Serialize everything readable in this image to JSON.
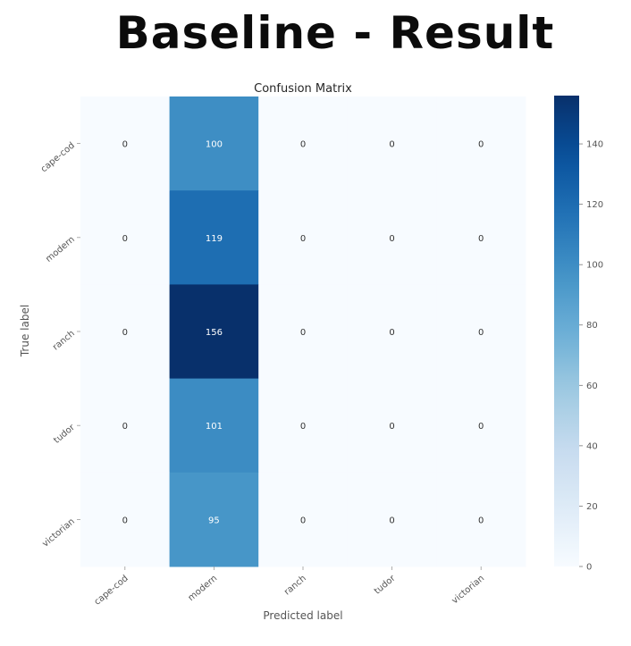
{
  "page": {
    "title": "Baseline - Result"
  },
  "chart_data": {
    "type": "heatmap",
    "title": "Confusion Matrix",
    "xlabel": "Predicted label",
    "ylabel": "True label",
    "x_categories": [
      "cape-cod",
      "modern",
      "ranch",
      "tudor",
      "victorian"
    ],
    "y_categories": [
      "cape-cod",
      "modern",
      "ranch",
      "tudor",
      "victorian"
    ],
    "matrix": [
      [
        0,
        100,
        0,
        0,
        0
      ],
      [
        0,
        119,
        0,
        0,
        0
      ],
      [
        0,
        156,
        0,
        0,
        0
      ],
      [
        0,
        101,
        0,
        0,
        0
      ],
      [
        0,
        95,
        0,
        0,
        0
      ]
    ],
    "colorbar": {
      "range": [
        0,
        156
      ],
      "ticks": [
        0,
        20,
        40,
        60,
        80,
        100,
        120,
        140
      ],
      "colormap": "Blues",
      "color_low": "#f7fbff",
      "color_high": "#08306b"
    },
    "grid": false
  }
}
